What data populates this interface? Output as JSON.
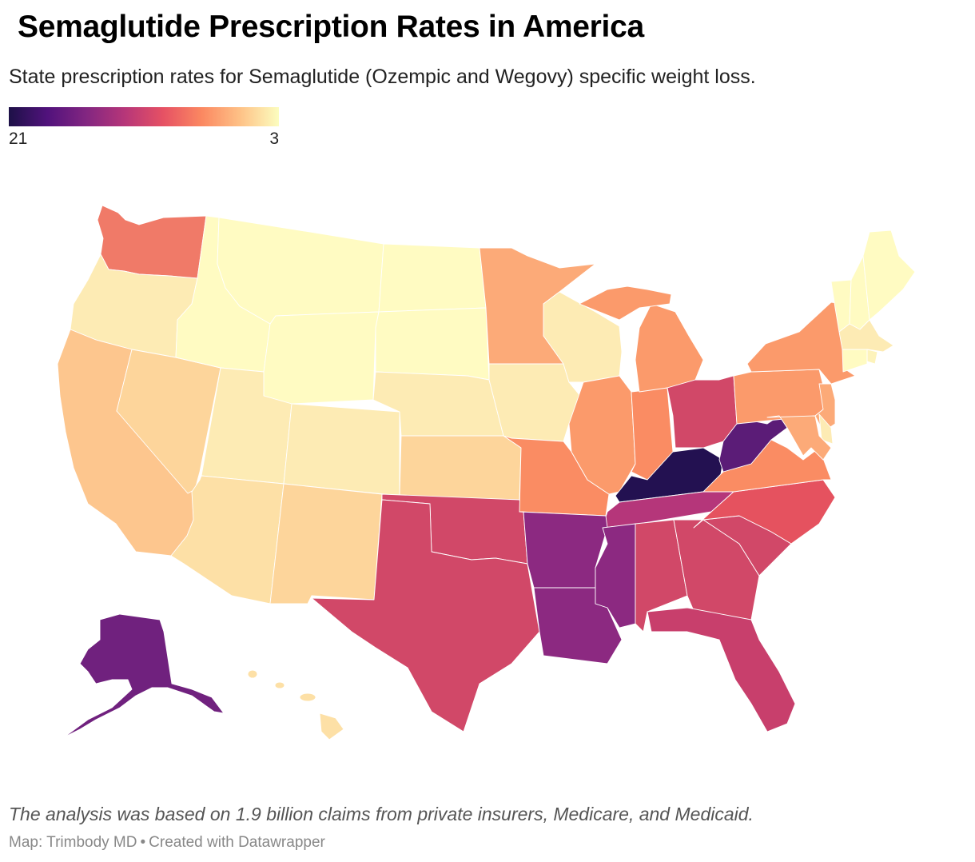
{
  "title": "Semaglutide Prescription Rates in America",
  "subtitle": "State prescription rates for Semaglutide (Ozempic and Wegovy) specific weight loss.",
  "legend": {
    "min_label": "21",
    "max_label": "3",
    "colors": [
      "#1d1147",
      "#51127c",
      "#822681",
      "#b63679",
      "#e65164",
      "#fb8861",
      "#fec287",
      "#fcfdbf"
    ]
  },
  "palette": {
    "c1": "#231151",
    "c2": "#5b1c77",
    "c3": "#70217e",
    "c4": "#8c2981",
    "c5": "#b5367a",
    "c6": "#c83f6c",
    "c7": "#d14868",
    "c8": "#e5525f",
    "c9": "#f07a68",
    "c10": "#fa8c63",
    "c11": "#fb9a6b",
    "c12": "#fcaa78",
    "c13": "#fdc68e",
    "c14": "#fdd59b",
    "c15": "#fde0a6",
    "c16": "#fdebb4",
    "c17": "#fdf3bb",
    "c18": "#fffbc2"
  },
  "notes": "The analysis was based on 1.9 billion claims from private insurers, Medicare, and Medicaid.",
  "byline": {
    "source": "Map: Trimbody MD",
    "separator": "•",
    "credit": "Created with Datawrapper"
  }
}
